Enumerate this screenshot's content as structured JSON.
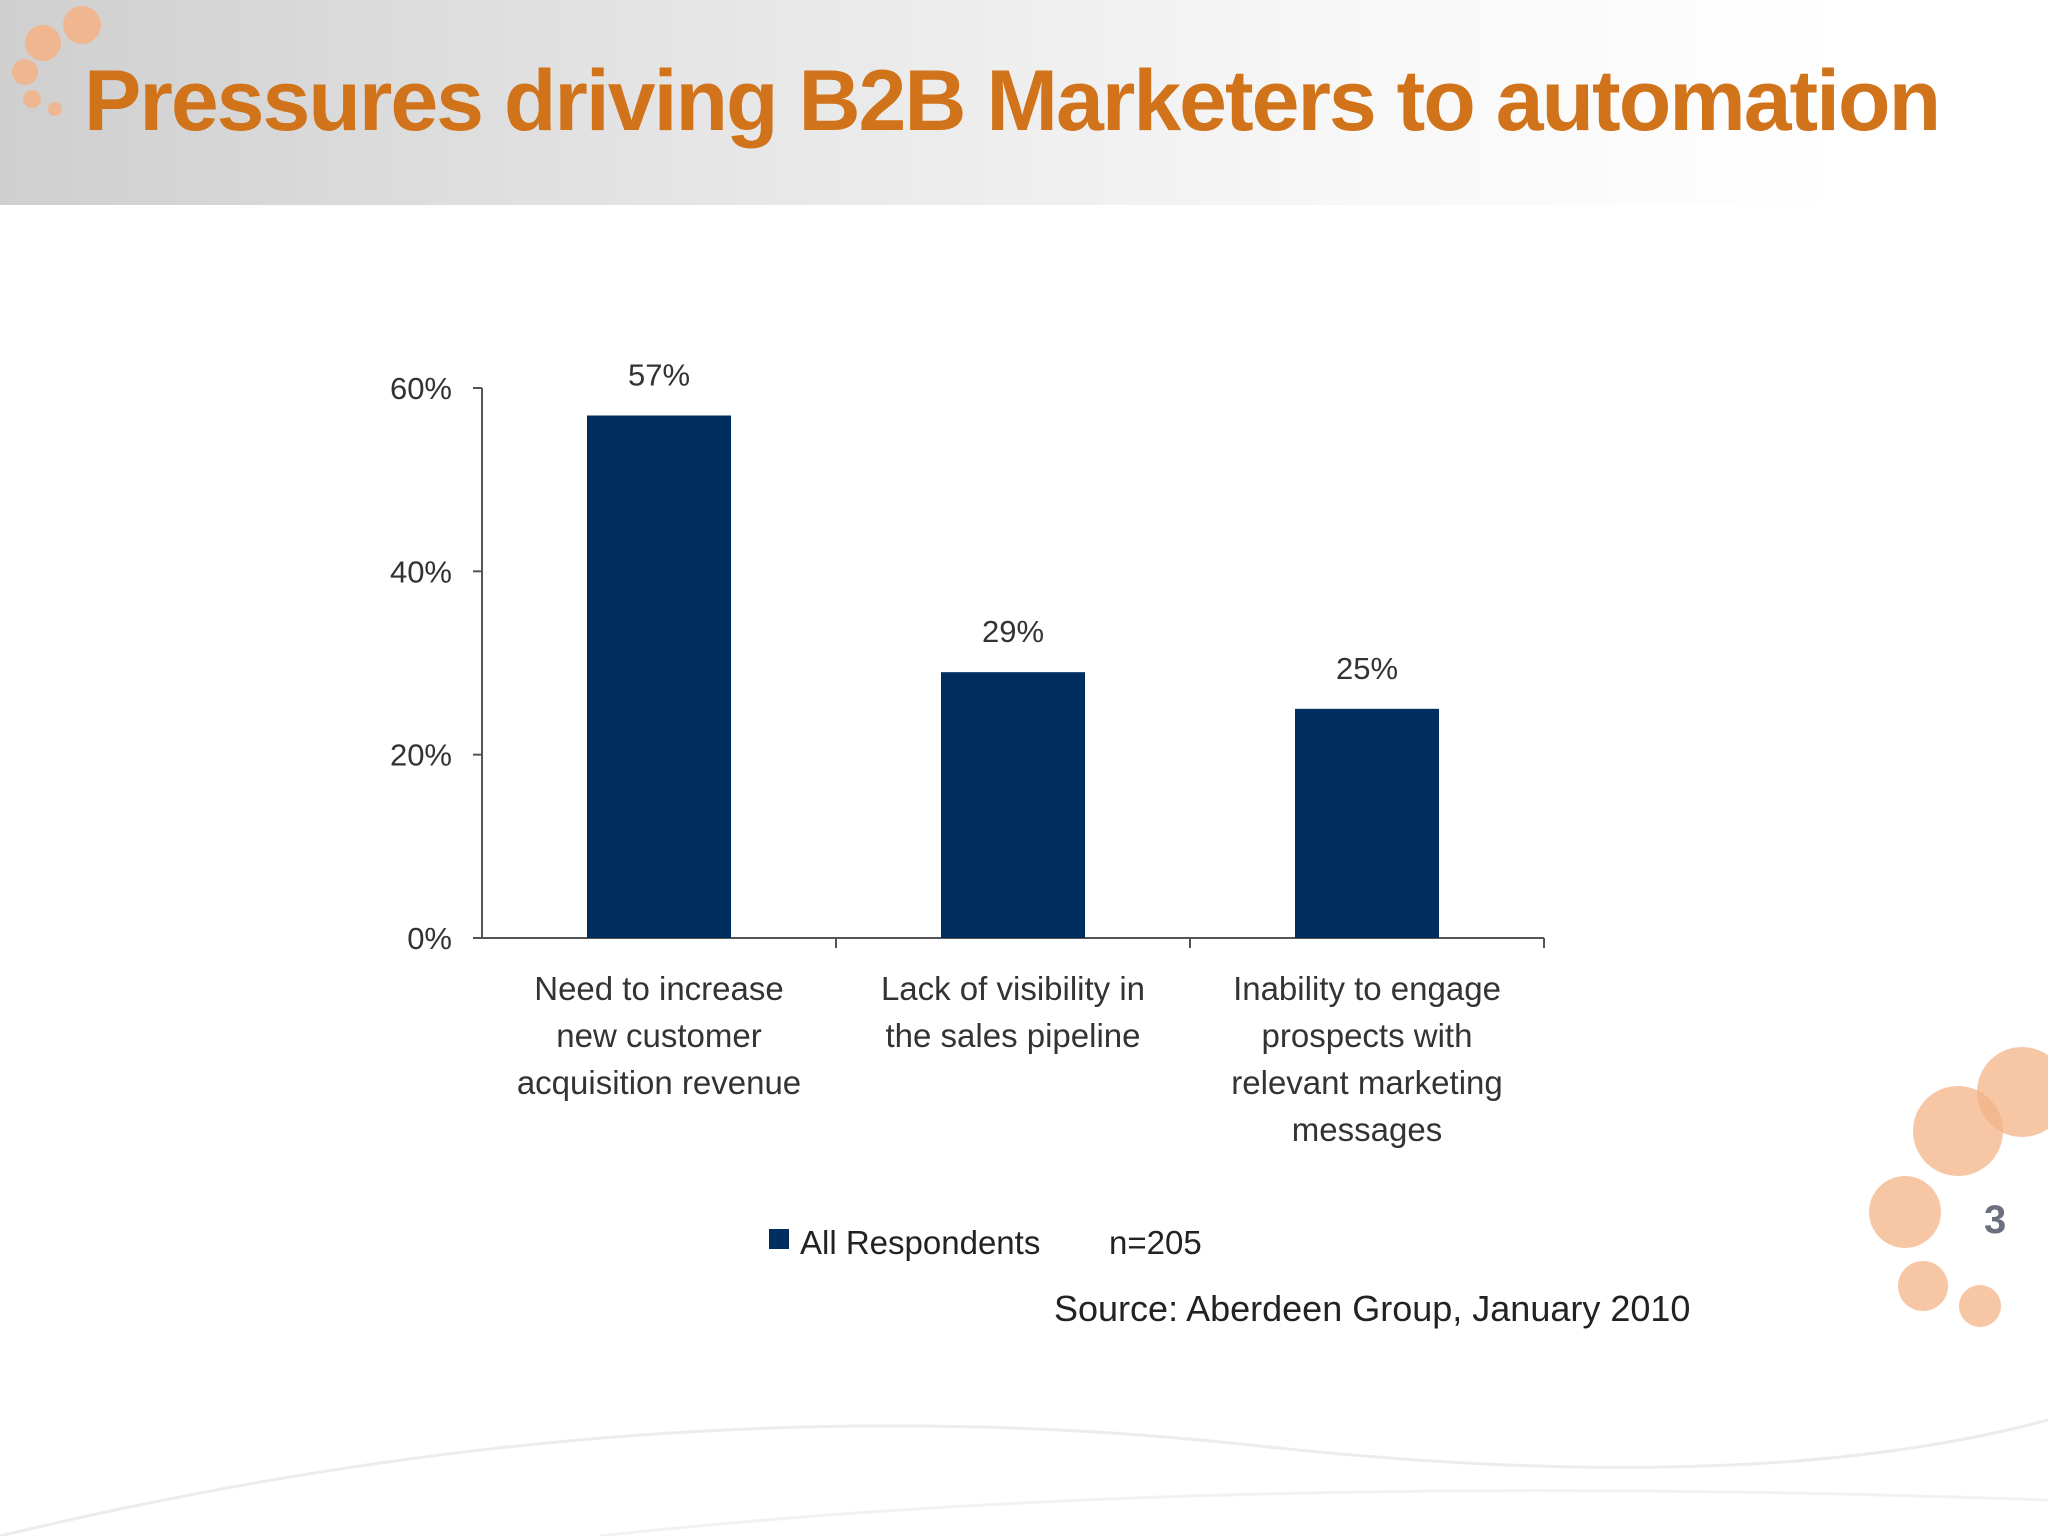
{
  "slide": {
    "title": "Pressures driving B2B Marketers to automation",
    "page_number": "3",
    "source": "Source: Aberdeen Group, January 2010"
  },
  "colors": {
    "title": "#d1731a",
    "bar": "#002f5f",
    "bubble": "#f3b387"
  },
  "chart_data": {
    "type": "bar",
    "categories": [
      [
        "Need to increase",
        "new customer",
        "acquisition revenue"
      ],
      [
        "Lack of visibility in",
        "the sales pipeline"
      ],
      [
        "Inability to engage",
        "prospects with",
        "relevant marketing",
        "messages"
      ]
    ],
    "series": [
      {
        "name": "All Respondents",
        "values": [
          57,
          29,
          25
        ]
      }
    ],
    "data_labels": [
      "57%",
      "29%",
      "25%"
    ],
    "yticks": [
      0,
      20,
      40,
      60
    ],
    "ytick_labels": [
      "0%",
      "20%",
      "40%",
      "60%"
    ],
    "ylim": [
      0,
      60
    ],
    "legend": {
      "label": "All Respondents",
      "note": "n=205",
      "placement": "bottom"
    },
    "grid": false
  }
}
